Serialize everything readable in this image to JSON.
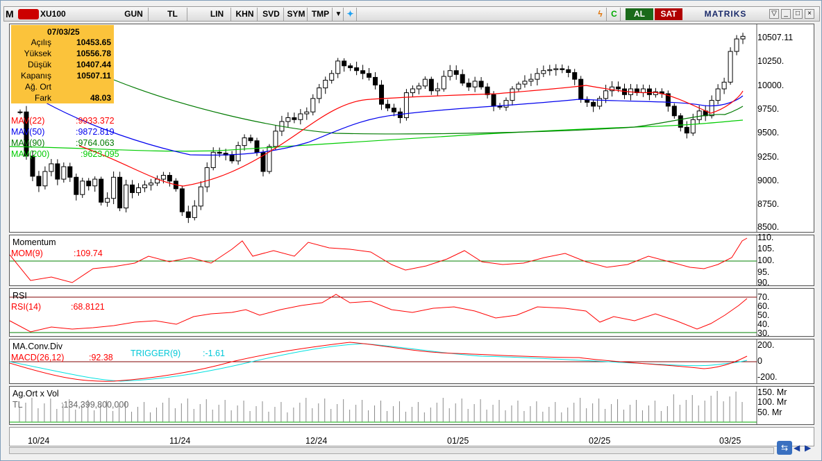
{
  "toolbar": {
    "symbol": "XU100",
    "buttons": [
      "GUN",
      "TL",
      "LIN",
      "KHN",
      "SVD",
      "SYM",
      "TMP"
    ],
    "buy": "AL",
    "sell": "SAT",
    "brand": "MATRIKS"
  },
  "info": {
    "date": "07/03/25",
    "rows": [
      [
        "Açılış",
        "10453.65"
      ],
      [
        "Yüksek",
        "10556.78"
      ],
      [
        "Düşük",
        "10407.44"
      ],
      [
        "Kapanış",
        "10507.11"
      ],
      [
        "Ağ. Ort",
        ""
      ],
      [
        "Fark",
        "48.03"
      ]
    ]
  },
  "price": {
    "last": "10507.11",
    "ticks": [
      "10250.",
      "10000.",
      "9750.",
      "9500.",
      "9250.",
      "9000.",
      "8750.",
      "8500."
    ],
    "mav": [
      {
        "name": "MAV(22)",
        "val": ":9933.372",
        "color": "#ff0000"
      },
      {
        "name": "MAV(50)",
        "val": ":9872.819",
        "color": "#0000ee"
      },
      {
        "name": "MAV(90)",
        "val": ":9764.063",
        "color": "#007a00"
      },
      {
        "name": "MAV(200)",
        "val": ":9623.095",
        "color": "#00cc00"
      }
    ]
  },
  "momentum": {
    "title": "Momentum",
    "name": "MOM(9)",
    "val": ":109.74",
    "ticks": [
      "110.",
      "105.",
      "100.",
      "95.",
      "90."
    ]
  },
  "rsi": {
    "title": "RSI",
    "name": "RSI(14)",
    "val": ":68.8121",
    "ticks": [
      "70.",
      "60.",
      "50.",
      "40.",
      "30."
    ]
  },
  "macd": {
    "title": "MA.Conv.Div",
    "name": "MACD(26,12)",
    "val": ":92.38",
    "trig": "TRIGGER(9)",
    "trigval": ":-1.61",
    "ticks": [
      "200.",
      "0",
      "-200."
    ]
  },
  "vol": {
    "title": "Ag.Ort x Vol",
    "name": "TL",
    "val": ":134,399,800,000",
    "ticks": [
      "150. Mr",
      "100. Mr",
      "50. Mr"
    ]
  },
  "xaxis": [
    "10/24",
    "11/24",
    "12/24",
    "01/25",
    "02/25",
    "03/25"
  ],
  "chart_data": {
    "type": "candlestick",
    "ylim": [
      8500,
      10560
    ],
    "close_last": 10507.11,
    "closes": [
      9720,
      9260,
      9050,
      8950,
      9100,
      9180,
      9020,
      9150,
      9040,
      8860,
      9000,
      8950,
      9020,
      8780,
      8820,
      9040,
      8720,
      8960,
      8880,
      8930,
      8960,
      8980,
      9020,
      9060,
      9000,
      8920,
      8680,
      8620,
      8740,
      8940,
      9140,
      9300,
      9290,
      9270,
      9210,
      9370,
      9450,
      9420,
      9300,
      9100,
      9360,
      9520,
      9620,
      9660,
      9640,
      9700,
      9720,
      9860,
      9970,
      10050,
      10120,
      10250,
      10200,
      10180,
      10150,
      10120,
      10080,
      10000,
      9800,
      9760,
      9720,
      9660,
      9920,
      9960,
      9990,
      10060,
      9940,
      9960,
      10090,
      10150,
      10110,
      10020,
      9980,
      10040,
      9980,
      9900,
      9780,
      9770,
      9840,
      9960,
      10010,
      10040,
      10060,
      10120,
      10150,
      10160,
      10170,
      10160,
      10130,
      10060,
      9850,
      9820,
      9780,
      9860,
      9940,
      9980,
      9960,
      9900,
      9960,
      9920,
      9960,
      9900,
      9930,
      9910,
      9780,
      9680,
      9560,
      9500,
      9640,
      9730,
      9680,
      9840,
      9960,
      10030,
      10350,
      10480,
      10507
    ]
  }
}
